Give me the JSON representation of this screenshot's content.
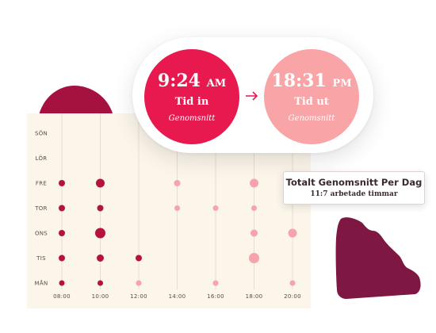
{
  "clock_in": {
    "time": "9:24",
    "ampm": "AM",
    "label": "Tid in",
    "caption": "Genomsnitt",
    "color": "#e8194f"
  },
  "clock_out": {
    "time": "18:31",
    "ampm": "PM",
    "label": "Tid ut",
    "caption": "Genomsnitt",
    "color": "#f9a5a8"
  },
  "tooltip": {
    "title": "Totalt Genomsnitt Per Dag",
    "subtitle": "11:7 arbetade timmar"
  },
  "chart_data": {
    "type": "scatter",
    "days": [
      "SÖN",
      "LÖR",
      "FRE",
      "TOR",
      "ONS",
      "TIS",
      "MÅN"
    ],
    "time_ticks": [
      "08:00",
      "10:00",
      "12:00",
      "14:00",
      "16:00",
      "18:00",
      "20:00"
    ],
    "xlim": [
      8,
      20
    ],
    "series": [
      {
        "color": "#b5123e",
        "points": [
          {
            "day": "FRE",
            "x": 8,
            "r": 4
          },
          {
            "day": "FRE",
            "x": 10,
            "r": 5.5
          },
          {
            "day": "TOR",
            "x": 8,
            "r": 4
          },
          {
            "day": "TOR",
            "x": 10,
            "r": 4
          },
          {
            "day": "ONS",
            "x": 8,
            "r": 4
          },
          {
            "day": "ONS",
            "x": 10,
            "r": 6.5
          },
          {
            "day": "TIS",
            "x": 8,
            "r": 4
          },
          {
            "day": "TIS",
            "x": 10,
            "r": 4.5
          },
          {
            "day": "TIS",
            "x": 12,
            "r": 4
          },
          {
            "day": "MÅN",
            "x": 8,
            "r": 3.5
          },
          {
            "day": "MÅN",
            "x": 10,
            "r": 3.5
          }
        ]
      },
      {
        "color": "#f7a3ad",
        "points": [
          {
            "day": "FRE",
            "x": 14,
            "r": 4
          },
          {
            "day": "FRE",
            "x": 18,
            "r": 5.5
          },
          {
            "day": "TOR",
            "x": 14,
            "r": 3.5
          },
          {
            "day": "TOR",
            "x": 16,
            "r": 3.5
          },
          {
            "day": "TOR",
            "x": 18,
            "r": 3.5
          },
          {
            "day": "ONS",
            "x": 18,
            "r": 4.5
          },
          {
            "day": "ONS",
            "x": 20,
            "r": 5.5
          },
          {
            "day": "TIS",
            "x": 18,
            "r": 6.5
          },
          {
            "day": "MÅN",
            "x": 12,
            "r": 3.5
          },
          {
            "day": "MÅN",
            "x": 16,
            "r": 3.5
          },
          {
            "day": "MÅN",
            "x": 20,
            "r": 3.5
          }
        ]
      }
    ]
  }
}
